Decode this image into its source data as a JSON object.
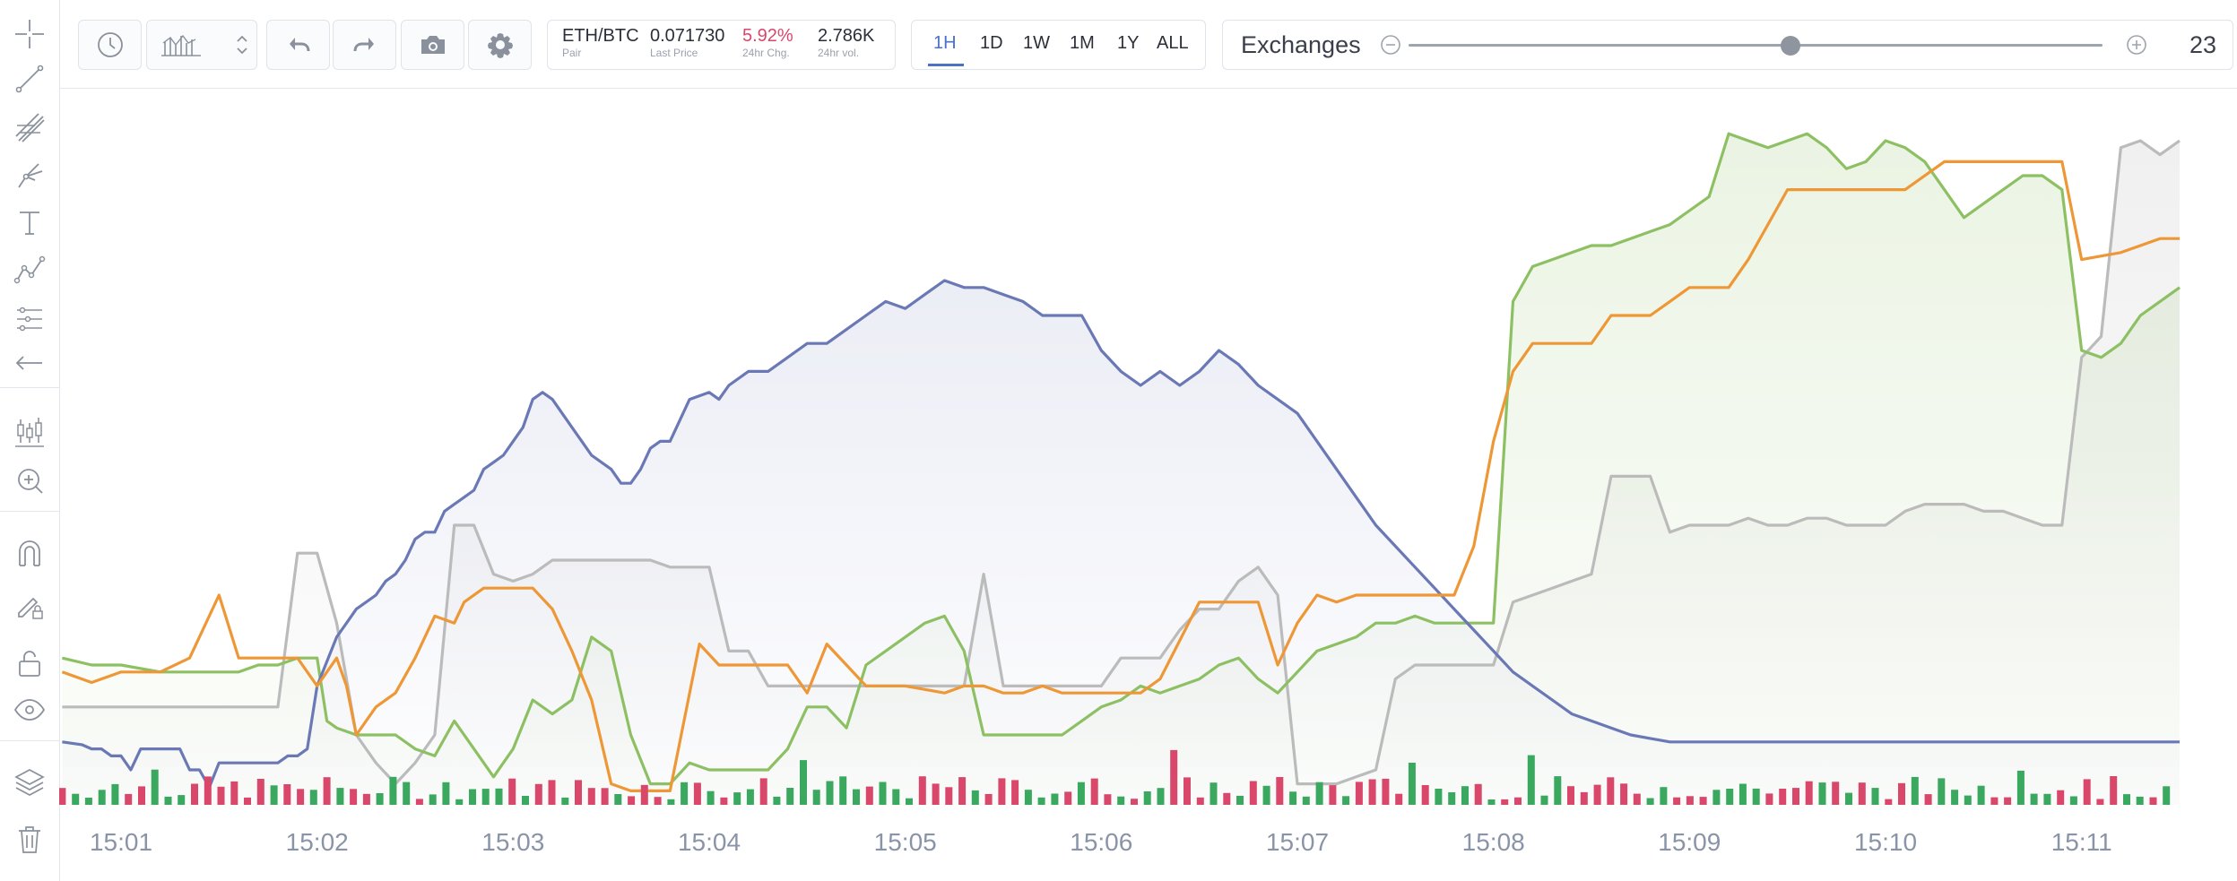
{
  "toolbar": {
    "left_tools": [
      {
        "name": "crosshair-icon"
      },
      {
        "name": "trendline-icon"
      },
      {
        "name": "fib-tools-icon"
      },
      {
        "name": "pitchfork-icon"
      },
      {
        "name": "text-tool-icon"
      },
      {
        "name": "pattern-tool-icon"
      },
      {
        "name": "measure-tool-icon"
      },
      {
        "name": "arrow-left-icon"
      },
      {
        "name": "candles-icon"
      },
      {
        "name": "zoom-in-icon"
      },
      {
        "name": "magnet-icon"
      },
      {
        "name": "pencil-lock-icon"
      },
      {
        "name": "unlock-icon"
      },
      {
        "name": "eye-icon"
      },
      {
        "name": "layers-icon"
      },
      {
        "name": "trash-icon"
      }
    ]
  },
  "pair": {
    "symbol": "ETH/BTC",
    "symbol_label": "Pair",
    "last_price": "0.071730",
    "last_price_label": "Last Price",
    "change": "5.92%",
    "change_label": "24hr Chg.",
    "volume": "2.786K",
    "volume_label": "24hr vol."
  },
  "ranges": [
    "1H",
    "1D",
    "1W",
    "1M",
    "1Y",
    "ALL"
  ],
  "active_range": "1H",
  "exchanges": {
    "label": "Exchanges",
    "count": "23",
    "slider_fraction": 0.55
  },
  "colors": {
    "blue": "#6a78b5",
    "orange": "#ee9736",
    "green": "#8dc063",
    "gray": "#bbbbbb",
    "up": "#3aa85e",
    "down": "#d9476b",
    "accent": "#4b71c9"
  },
  "chart_data": {
    "type": "line",
    "title": "",
    "xlabel": "",
    "ylabel": "",
    "x_ticks": [
      "15:01",
      "15:02",
      "15:03",
      "15:04",
      "15:05",
      "15:06",
      "15:07",
      "15:08",
      "15:09",
      "15:10",
      "15:11"
    ],
    "x_range": [
      0,
      10.5
    ],
    "y_range": [
      0,
      100
    ],
    "grid": false,
    "series": [
      {
        "color": "blue",
        "fill": true,
        "points": [
          [
            -0.3,
            9
          ],
          [
            -0.2,
            8.6
          ],
          [
            -0.15,
            8
          ],
          [
            -0.1,
            8
          ],
          [
            -0.05,
            7
          ],
          [
            0,
            7
          ],
          [
            0.05,
            5
          ],
          [
            0.1,
            8
          ],
          [
            0.2,
            8
          ],
          [
            0.3,
            8
          ],
          [
            0.35,
            5
          ],
          [
            0.4,
            5
          ],
          [
            0.45,
            2.5
          ],
          [
            0.5,
            6
          ],
          [
            0.6,
            6
          ],
          [
            0.7,
            6
          ],
          [
            0.8,
            6
          ],
          [
            0.85,
            7
          ],
          [
            0.9,
            7
          ],
          [
            0.95,
            8
          ],
          [
            1,
            17
          ],
          [
            1.1,
            24
          ],
          [
            1.15,
            26
          ],
          [
            1.2,
            28
          ],
          [
            1.3,
            30
          ],
          [
            1.35,
            32
          ],
          [
            1.4,
            33
          ],
          [
            1.45,
            35
          ],
          [
            1.5,
            38
          ],
          [
            1.55,
            39
          ],
          [
            1.6,
            39
          ],
          [
            1.65,
            42
          ],
          [
            1.7,
            43
          ],
          [
            1.75,
            44
          ],
          [
            1.8,
            45
          ],
          [
            1.85,
            48
          ],
          [
            1.9,
            49
          ],
          [
            1.95,
            50
          ],
          [
            2,
            52
          ],
          [
            2.05,
            54
          ],
          [
            2.1,
            58
          ],
          [
            2.15,
            59
          ],
          [
            2.2,
            58
          ],
          [
            2.25,
            56
          ],
          [
            2.3,
            54
          ],
          [
            2.35,
            52
          ],
          [
            2.4,
            50
          ],
          [
            2.5,
            48
          ],
          [
            2.55,
            46
          ],
          [
            2.6,
            46
          ],
          [
            2.65,
            48
          ],
          [
            2.7,
            51
          ],
          [
            2.75,
            52
          ],
          [
            2.8,
            52
          ],
          [
            2.9,
            58
          ],
          [
            3,
            59
          ],
          [
            3.05,
            58
          ],
          [
            3.1,
            60
          ],
          [
            3.2,
            62
          ],
          [
            3.3,
            62
          ],
          [
            3.4,
            64
          ],
          [
            3.5,
            66
          ],
          [
            3.6,
            66
          ],
          [
            3.7,
            68
          ],
          [
            3.8,
            70
          ],
          [
            3.9,
            72
          ],
          [
            4,
            71
          ],
          [
            4.1,
            73
          ],
          [
            4.2,
            75
          ],
          [
            4.3,
            74
          ],
          [
            4.4,
            74
          ],
          [
            4.5,
            73
          ],
          [
            4.6,
            72
          ],
          [
            4.7,
            70
          ],
          [
            4.8,
            70
          ],
          [
            4.9,
            70
          ],
          [
            5,
            65
          ],
          [
            5.1,
            62
          ],
          [
            5.2,
            60
          ],
          [
            5.3,
            62
          ],
          [
            5.4,
            60
          ],
          [
            5.5,
            62
          ],
          [
            5.6,
            65
          ],
          [
            5.7,
            63
          ],
          [
            5.8,
            60
          ],
          [
            5.9,
            58
          ],
          [
            6,
            56
          ],
          [
            6.1,
            52
          ],
          [
            6.2,
            48
          ],
          [
            6.3,
            44
          ],
          [
            6.4,
            40
          ],
          [
            6.5,
            37
          ],
          [
            6.6,
            34
          ],
          [
            6.7,
            31
          ],
          [
            6.8,
            28
          ],
          [
            6.9,
            25
          ],
          [
            7,
            22
          ],
          [
            7.1,
            19
          ],
          [
            7.2,
            17
          ],
          [
            7.3,
            15
          ],
          [
            7.4,
            13
          ],
          [
            7.5,
            12
          ],
          [
            7.6,
            11
          ],
          [
            7.7,
            10
          ],
          [
            7.8,
            9.5
          ],
          [
            7.9,
            9
          ],
          [
            8,
            9
          ],
          [
            8.2,
            9
          ],
          [
            8.4,
            9
          ],
          [
            8.6,
            9
          ],
          [
            8.8,
            9
          ],
          [
            9,
            9
          ],
          [
            9.2,
            9
          ],
          [
            9.4,
            9
          ],
          [
            9.6,
            9
          ],
          [
            9.8,
            9
          ],
          [
            10,
            9
          ],
          [
            10.2,
            9
          ],
          [
            10.4,
            9
          ],
          [
            10.5,
            9
          ]
        ]
      },
      {
        "color": "orange",
        "fill": false,
        "points": []
      },
      {
        "color": "green",
        "fill": true,
        "points": []
      },
      {
        "color": "gray",
        "fill": true,
        "points": []
      }
    ],
    "volume_bars": []
  }
}
